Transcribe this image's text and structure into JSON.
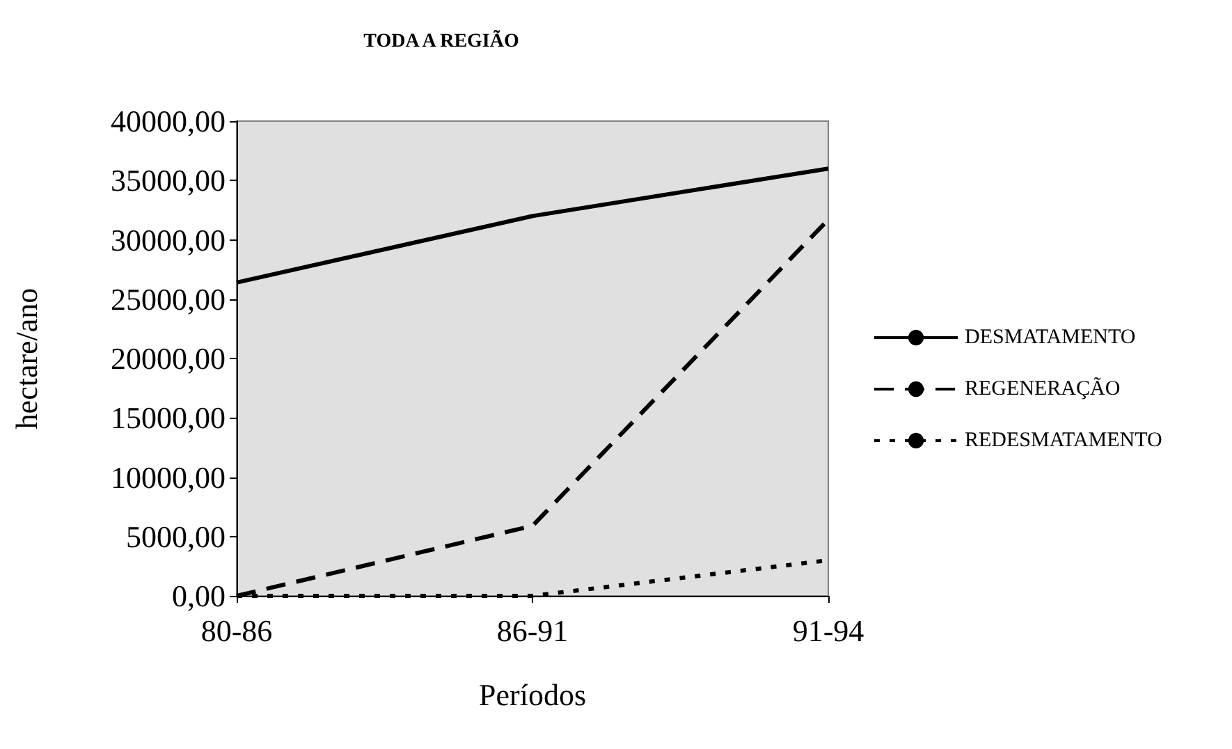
{
  "chart_data": {
    "type": "line",
    "title": "TODA A REGIÃO",
    "xlabel": "Períodos",
    "ylabel": "hectare/ano",
    "categories": [
      "80-86",
      "86-91",
      "91-94"
    ],
    "series": [
      {
        "name": "DESMATAMENTO",
        "color": "#000000",
        "line_style": "solid",
        "values": [
          26400,
          32000,
          36000
        ]
      },
      {
        "name": "REGENERAÇÃO",
        "color": "#000000",
        "line_style": "dashed",
        "values": [
          0,
          5900,
          31700
        ]
      },
      {
        "name": "REDESMATAMENTO",
        "color": "#000000",
        "line_style": "dotted",
        "values": [
          0,
          0,
          3000
        ]
      }
    ],
    "ylim": [
      0,
      40000
    ],
    "yticks": [
      {
        "value": 0,
        "label": "0,00"
      },
      {
        "value": 5000,
        "label": "5000,00"
      },
      {
        "value": 10000,
        "label": "10000,00"
      },
      {
        "value": 15000,
        "label": "15000,00"
      },
      {
        "value": 20000,
        "label": "20000,00"
      },
      {
        "value": 25000,
        "label": "25000,00"
      },
      {
        "value": 30000,
        "label": "30000,00"
      },
      {
        "value": 35000,
        "label": "35000,00"
      },
      {
        "value": 40000,
        "label": "40000,00"
      }
    ],
    "grid": false,
    "legend": "right",
    "marker": "none"
  }
}
